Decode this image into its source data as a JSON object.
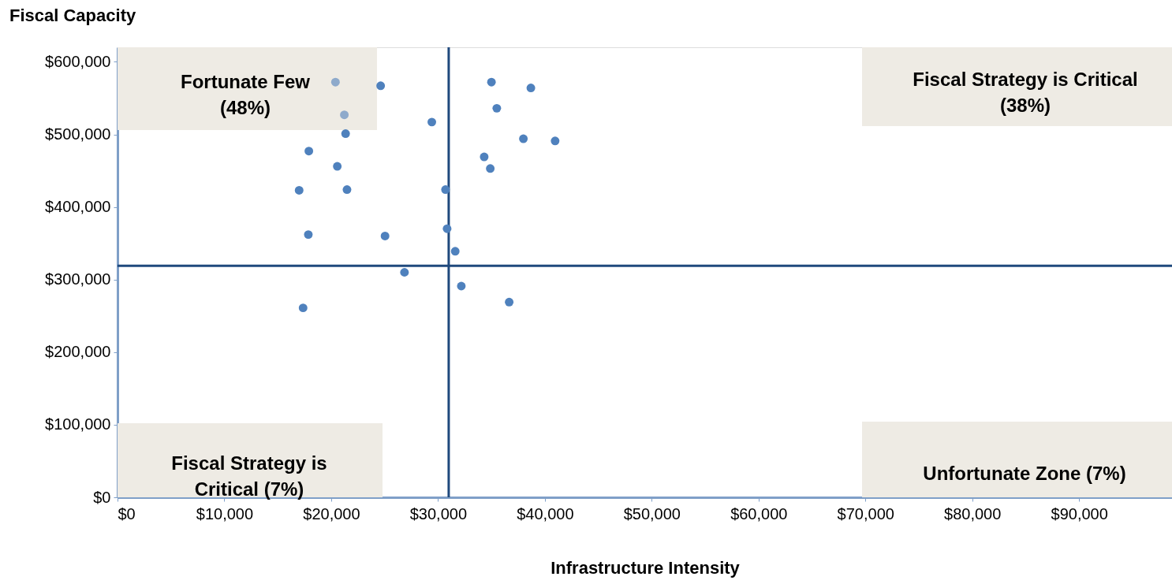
{
  "chart_data": {
    "type": "scatter",
    "xlabel": "Infrastructure Intensity",
    "ylabel": "Fiscal Capacity",
    "annotations": [
      "Fortunate Few\n(48%)",
      "Fiscal Strategy is Critical\n(38%)",
      "Fiscal Strategy is\nCritical (7%)",
      "Unfortunate Zone (7%)"
    ],
    "x": [
      20400,
      24630,
      35000,
      38690,
      21230,
      35500,
      29420,
      21350,
      37990,
      40960,
      17910,
      34320,
      20570,
      34890,
      17000,
      21480,
      30700,
      17860,
      25040,
      30850,
      31610,
      26860,
      32180,
      36660,
      17370
    ],
    "values": [
      572000,
      567000,
      572000,
      564000,
      527000,
      536000,
      517000,
      501000,
      494000,
      491000,
      477000,
      469000,
      456000,
      453000,
      423000,
      424000,
      424000,
      362000,
      360000,
      370000,
      339000,
      310000,
      291000,
      269000,
      261000
    ],
    "colors": [
      "#8eaacb",
      "#4f81bd",
      "#4f81bd",
      "#4f81bd",
      "#8eaacb",
      "#4f81bd",
      "#4f81bd",
      "#4f81bd",
      "#4f81bd",
      "#4f81bd",
      "#4f81bd",
      "#4f81bd",
      "#4f81bd",
      "#4f81bd",
      "#4f81bd",
      "#4f81bd",
      "#4f81bd",
      "#4f81bd",
      "#4f81bd",
      "#4f81bd",
      "#4f81bd",
      "#4f81bd",
      "#4f81bd",
      "#4f81bd",
      "#4f81bd"
    ],
    "xlim": [
      0,
      98700
    ],
    "ylim": [
      0,
      620000
    ],
    "xticks": [
      {
        "value": 0,
        "label": "$0"
      },
      {
        "value": 10000,
        "label": "$10,000"
      },
      {
        "value": 20000,
        "label": "$20,000"
      },
      {
        "value": 30000,
        "label": "$30,000"
      },
      {
        "value": 40000,
        "label": "$40,000"
      },
      {
        "value": 50000,
        "label": "$50,000"
      },
      {
        "value": 60000,
        "label": "$60,000"
      },
      {
        "value": 70000,
        "label": "$70,000"
      },
      {
        "value": 80000,
        "label": "$80,000"
      },
      {
        "value": 90000,
        "label": "$90,000"
      }
    ],
    "yticks": [
      {
        "value": 0,
        "label": "$0"
      },
      {
        "value": 100000,
        "label": "$100,000"
      },
      {
        "value": 200000,
        "label": "$200,000"
      },
      {
        "value": 300000,
        "label": "$300,000"
      },
      {
        "value": 400000,
        "label": "$400,000"
      },
      {
        "value": 500000,
        "label": "$500,000"
      },
      {
        "value": 600000,
        "label": "$600,000"
      }
    ],
    "ref_lines": [
      {
        "axis": "x",
        "value": 31000,
        "color": "#1f497d"
      },
      {
        "axis": "y",
        "value": 319000,
        "color": "#1f497d"
      }
    ],
    "marker": "circle",
    "grid": false
  }
}
